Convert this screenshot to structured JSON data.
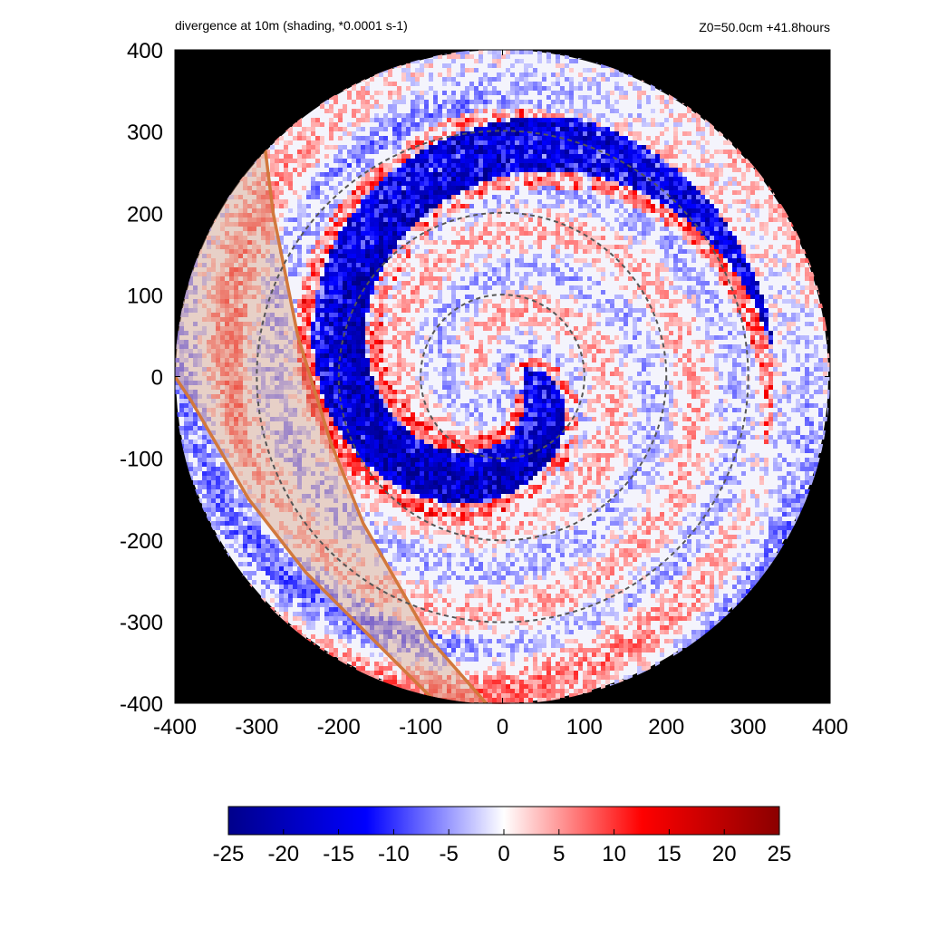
{
  "chart_data": {
    "type": "heatmap",
    "title": "divergence at 10m (shading, *0.0001 s-1)",
    "subtitle": "Z0=50.0cm  +41.8hours",
    "xlabel": "",
    "ylabel": "",
    "xlim": [
      -400,
      400
    ],
    "ylim": [
      -400,
      400
    ],
    "x_ticks": [
      "-400",
      "-300",
      "-200",
      "-100",
      "0",
      "100",
      "200",
      "300",
      "400"
    ],
    "y_ticks": [
      "400",
      "300",
      "200",
      "100",
      "0",
      "-100",
      "-200",
      "-300",
      "-400"
    ],
    "x_tick_values": [
      -400,
      -300,
      -200,
      -100,
      0,
      100,
      200,
      300,
      400
    ],
    "y_tick_values": [
      400,
      300,
      200,
      100,
      0,
      -100,
      -200,
      -300,
      -400
    ],
    "domain_radius": 400,
    "range_rings": [
      100,
      200,
      300
    ],
    "colorbar": {
      "min": -25,
      "max": 25,
      "ticks": [
        "-25",
        "-20",
        "-15",
        "-10",
        "-5",
        "0",
        "5",
        "10",
        "15",
        "20",
        "25"
      ],
      "tick_values": [
        -25,
        -20,
        -15,
        -10,
        -5,
        0,
        5,
        10,
        15,
        20,
        25
      ],
      "colors": [
        "#00008b",
        "#0000ff",
        "#ffffff",
        "#ff0000",
        "#8b0000"
      ]
    },
    "coast_line_1": [
      [
        -290,
        280
      ],
      [
        -280,
        200
      ],
      [
        -250,
        50
      ],
      [
        -210,
        -80
      ],
      [
        -170,
        -180
      ],
      [
        -90,
        -320
      ],
      [
        -20,
        -400
      ]
    ],
    "coast_line_2": [
      [
        -400,
        0
      ],
      [
        -380,
        -30
      ],
      [
        -310,
        -150
      ],
      [
        -240,
        -240
      ],
      [
        -170,
        -310
      ],
      [
        -80,
        -400
      ]
    ],
    "colors": {
      "outside": "#000000",
      "land_fill": "#d8a488",
      "coast": "#d2783c",
      "rings": "#555555"
    }
  }
}
